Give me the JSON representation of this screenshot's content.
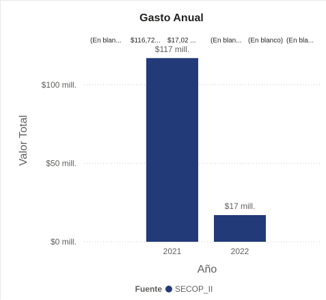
{
  "chart_data": {
    "type": "bar",
    "title": "Gasto Anual",
    "xlabel": "Año",
    "ylabel": "Valor Total",
    "categories": [
      "2021",
      "2022"
    ],
    "series": [
      {
        "name": "SECOP_II",
        "values": [
          117,
          17
        ]
      }
    ],
    "data_labels": [
      "$117 mill.",
      "$17 mill."
    ],
    "ylim": [
      0,
      130
    ],
    "yticks": [
      {
        "value": 0,
        "label": "$0 mill."
      },
      {
        "value": 50,
        "label": "$50 mill."
      },
      {
        "value": 100,
        "label": "$100 mill."
      }
    ],
    "grid": true,
    "legend": {
      "position": "bottom",
      "title": "Fuente",
      "entries": [
        "SECOP_II"
      ]
    },
    "top_labels": [
      "(En blan...",
      "$116,72...",
      "$17,02 ...",
      "(En blan...",
      "(En blanco)",
      "(En bla..."
    ],
    "colors": {
      "bar": "#223A78",
      "grid": "#C8C6C4"
    }
  }
}
